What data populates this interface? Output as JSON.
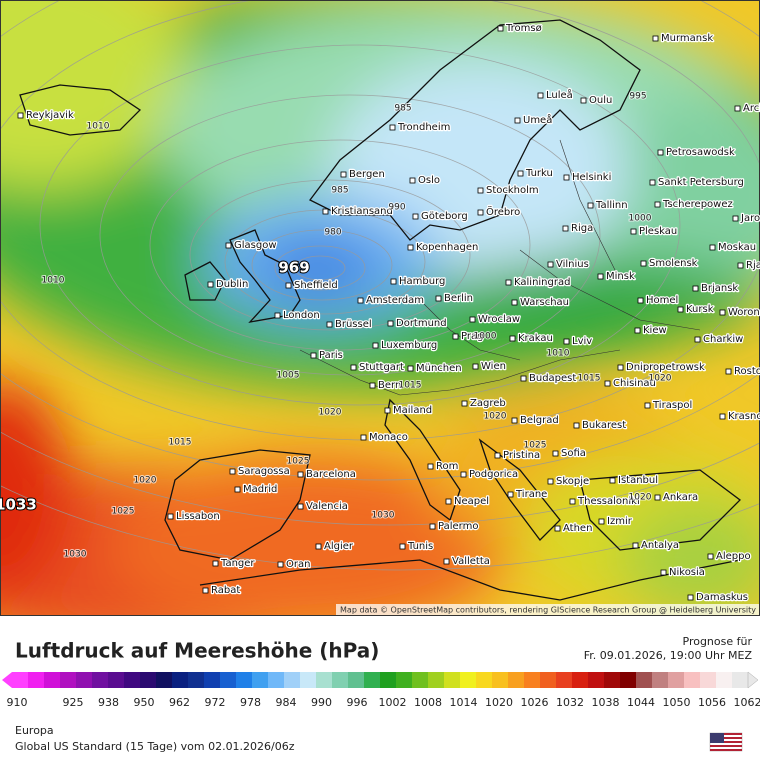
{
  "map": {
    "cities": [
      "Reykjavik",
      "Tromsø",
      "Murmansk",
      "Luleå",
      "Oulu",
      "Arch",
      "Trondheim",
      "Umeå",
      "Petrosawodsk",
      "Bergen",
      "Oslo",
      "Turku",
      "Helsinki",
      "Sankt Petersburg",
      "Stockholm",
      "Kristiansand",
      "Göteborg",
      "Örebro",
      "Tallinn",
      "Tscherepowez",
      "Jaros",
      "Glasgow",
      "Kopenhagen",
      "Riga",
      "Pleskau",
      "Moskau",
      "Dublin",
      "Sheffield",
      "Hamburg",
      "Kaliningrad",
      "Vilnius",
      "Minsk",
      "Smolensk",
      "Rjas",
      "Brjansk",
      "Amsterdam",
      "Berlin",
      "Warschau",
      "Homel",
      "Kursk",
      "Worone",
      "London",
      "Brüssel",
      "Dortmund",
      "Wroclaw",
      "Prag",
      "Krakau",
      "Kiew",
      "Charkiw",
      "Paris",
      "Luxemburg",
      "Lviv",
      "Stuttgart",
      "München",
      "Wien",
      "Dnipropetrowsk",
      "Rosto",
      "Budapest",
      "Chisinau",
      "Bern",
      "Tiraspol",
      "Krasno",
      "Mailand",
      "Zagreb",
      "Belgrad",
      "Bukarest",
      "Monaco",
      "Pristina",
      "Sofia",
      "Rom",
      "Podgorica",
      "Istanbul",
      "Saragossa",
      "Barcelona",
      "Skopje",
      "Madrid",
      "Tirane",
      "Thessaloniki",
      "Ankara",
      "Valencia",
      "Neapel",
      "Izmir",
      "Lissabon",
      "Palermo",
      "Athen",
      "Algier",
      "Tunis",
      "Antalya",
      "Aleppo",
      "Tanger",
      "Oran",
      "Valletta",
      "Nikosia",
      "Rabat",
      "Damaskus"
    ],
    "isobar_labels": [
      1010,
      985,
      995,
      985,
      990,
      980,
      969,
      1000,
      1010,
      1005,
      1000,
      1010,
      1015,
      1015,
      1020,
      1020,
      1020,
      1015,
      1025,
      1025,
      1020,
      1033,
      1025,
      1030,
      1020,
      1030
    ],
    "attribution": "Map data © OpenStreetMap contributors, rendering GIScience Research Group @ Heidelberg University"
  },
  "legend": {
    "title": "Luftdruck auf Meereshöhe (hPa)",
    "forecast_label": "Prognose für",
    "forecast_time": "Fr. 09.01.2026, 19:00 Uhr MEZ",
    "scale": {
      "ticks": [
        910,
        925,
        938,
        950,
        962,
        972,
        978,
        984,
        990,
        996,
        1002,
        1008,
        1014,
        1020,
        1026,
        1032,
        1038,
        1044,
        1050,
        1056,
        1062
      ],
      "colors": [
        "#ff40ff",
        "#f020f0",
        "#d010d8",
        "#b010c0",
        "#9010b0",
        "#7010a0",
        "#5a0c90",
        "#400880",
        "#2a0a70",
        "#101060",
        "#0a2080",
        "#103090",
        "#1040b0",
        "#1860d0",
        "#2080e8",
        "#40a0f0",
        "#70b8f8",
        "#a0d0f8",
        "#c8e8f8",
        "#a8e0d0",
        "#80d0b0",
        "#60c090",
        "#30b050",
        "#20a020",
        "#40b020",
        "#70c020",
        "#a0d020",
        "#d0e020",
        "#f0f020",
        "#f8d820",
        "#f8c020",
        "#f8a020",
        "#f88020",
        "#f06020",
        "#e84020",
        "#d82010",
        "#c01010",
        "#a00808",
        "#800000",
        "#a05050",
        "#c08080",
        "#e0a0a0",
        "#f8c0c0",
        "#f8d8d8",
        "#f8f0f0",
        "#e8e8e8"
      ]
    }
  },
  "footer": {
    "region": "Europa",
    "model": "Global US Standard (15 Tage) vom 02.01.2026/06z"
  }
}
